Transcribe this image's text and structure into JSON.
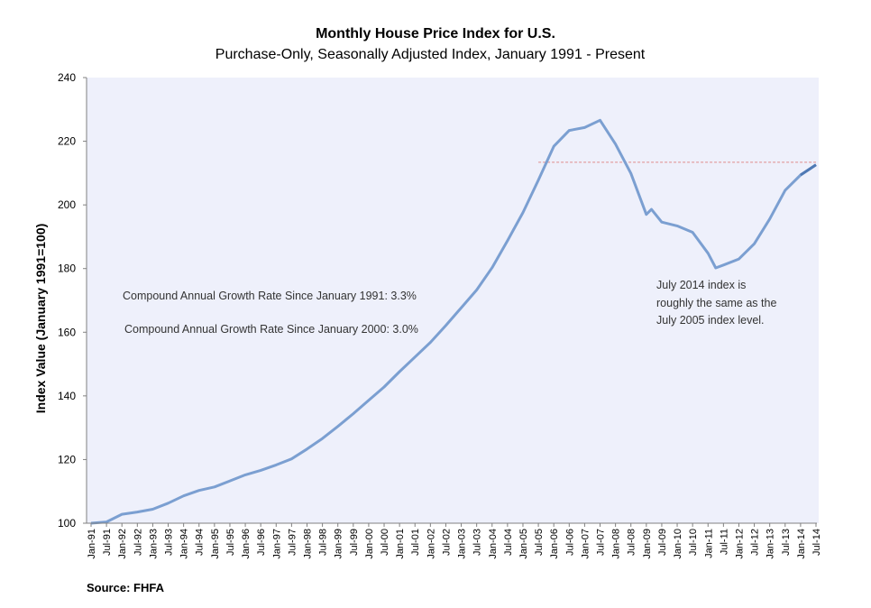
{
  "source": "Source: FHFA",
  "chart_data": {
    "type": "line",
    "title": "Monthly House Price Index for U.S.",
    "subtitle": "Purchase-Only, Seasonally Adjusted Index, January 1991 - Present",
    "xlabel": "",
    "ylabel": "Index Value (January 1991=100)",
    "ylim": [
      100,
      240
    ],
    "yticks": [
      100,
      120,
      140,
      160,
      180,
      200,
      220,
      240
    ],
    "xticks": [
      "Jan-91",
      "Jul-91",
      "Jan-92",
      "Jul-92",
      "Jan-93",
      "Jul-93",
      "Jan-94",
      "Jul-94",
      "Jan-95",
      "Jul-95",
      "Jan-96",
      "Jul-96",
      "Jan-97",
      "Jul-97",
      "Jan-98",
      "Jul-98",
      "Jan-99",
      "Jul-99",
      "Jan-00",
      "Jul-00",
      "Jan-01",
      "Jul-01",
      "Jan-02",
      "Jul-02",
      "Jan-03",
      "Jul-03",
      "Jan-04",
      "Jul-04",
      "Jan-05",
      "Jul-05",
      "Jan-06",
      "Jul-06",
      "Jan-07",
      "Jul-07",
      "Jan-08",
      "Jul-08",
      "Jan-09",
      "Jul-09",
      "Jan-10",
      "Jul-10",
      "Jan-11",
      "Jul-11",
      "Jan-12",
      "Jul-12",
      "Jan-13",
      "Jul-13",
      "Jan-14",
      "Jul-14"
    ],
    "plot_background": "#eef0fb",
    "series": [
      {
        "color": "#7b9fd1",
        "points": [
          [
            "Jan-91",
            100.0
          ],
          [
            "Jul-91",
            100.4
          ],
          [
            "Jan-92",
            102.8
          ],
          [
            "Jul-92",
            103.5
          ],
          [
            "Jan-93",
            104.4
          ],
          [
            "Jul-93",
            106.3
          ],
          [
            "Jan-94",
            108.6
          ],
          [
            "Jul-94",
            110.3
          ],
          [
            "Jan-95",
            111.4
          ],
          [
            "Jul-95",
            113.3
          ],
          [
            "Jan-96",
            115.2
          ],
          [
            "Jul-96",
            116.6
          ],
          [
            "Jan-97",
            118.3
          ],
          [
            "Jul-97",
            120.2
          ],
          [
            "Jan-98",
            123.3
          ],
          [
            "Jul-98",
            126.6
          ],
          [
            "Jan-99",
            130.4
          ],
          [
            "Jul-99",
            134.4
          ],
          [
            "Jan-00",
            138.6
          ],
          [
            "Jul-00",
            142.8
          ],
          [
            "Jan-01",
            147.6
          ],
          [
            "Jul-01",
            152.2
          ],
          [
            "Jan-02",
            156.8
          ],
          [
            "Jul-02",
            162.1
          ],
          [
            "Jan-03",
            167.7
          ],
          [
            "Jul-03",
            173.3
          ],
          [
            "Jan-04",
            180.3
          ],
          [
            "Jul-04",
            188.8
          ],
          [
            "Jan-05",
            197.6
          ],
          [
            "Jul-05",
            207.8
          ],
          [
            "Jan-06",
            218.4
          ],
          [
            "Jul-06",
            223.4
          ],
          [
            "Jan-07",
            224.3
          ],
          [
            "Jul-07",
            226.6
          ],
          [
            "Jan-08",
            219.1
          ],
          [
            "Jul-08",
            209.9
          ],
          [
            "Jan-09",
            197.0
          ],
          [
            "Mar-09",
            198.6
          ],
          [
            "Jul-09",
            194.6
          ],
          [
            "Jan-10",
            193.4
          ],
          [
            "Jul-10",
            191.4
          ],
          [
            "Jan-11",
            184.8
          ],
          [
            "Apr-11",
            180.2
          ],
          [
            "Jul-11",
            181.1
          ],
          [
            "Jan-12",
            183.0
          ],
          [
            "Jul-12",
            187.8
          ],
          [
            "Jan-13",
            195.6
          ],
          [
            "Jul-13",
            204.6
          ],
          [
            "Jan-14",
            209.4
          ],
          [
            "Jul-14",
            212.6
          ]
        ]
      }
    ],
    "reference_line": {
      "from": "Jul-05",
      "to": "Jul-14",
      "value": 213.4,
      "color": "#e08b8b",
      "style": "dashed"
    },
    "annotations": [
      "Compound Annual Growth Rate Since January 1991:  3.3%",
      "Compound Annual Growth Rate Since January 2000:  3.0%",
      "July 2014 index is",
      "roughly the same as the",
      "July 2005 index level."
    ]
  }
}
